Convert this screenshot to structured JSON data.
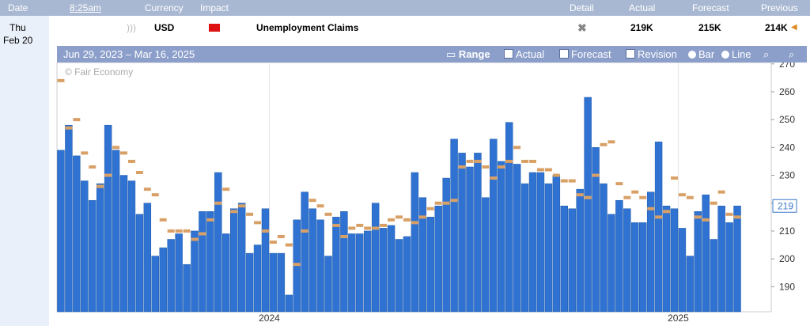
{
  "header": {
    "date": "Date",
    "time": "8:25am",
    "currency": "Currency",
    "impact": "Impact",
    "detail": "Detail",
    "actual": "Actual",
    "forecast": "Forecast",
    "previous": "Previous"
  },
  "event": {
    "day": "Thu",
    "date": "Feb 20",
    "currency": "USD",
    "title": "Unemployment Claims",
    "actual": "219K",
    "forecast": "215K",
    "previous": "214K"
  },
  "toolbar": {
    "range_text": "Jun 29, 2023 – Mar 16, 2025",
    "range": "Range",
    "actual": "Actual",
    "forecast": "Forecast",
    "revision": "Revision",
    "bar": "Bar",
    "line": "Line"
  },
  "chart": {
    "type": "bar",
    "watermark": "© Fair Economy",
    "latest_label": "219",
    "categories": [
      null,
      null,
      null,
      null,
      null,
      null,
      null,
      null,
      null,
      null,
      null,
      null,
      null,
      null,
      null,
      null,
      null,
      null,
      null,
      null,
      null,
      null,
      null,
      null,
      null,
      null,
      null,
      "2024",
      null,
      null,
      null,
      null,
      null,
      null,
      null,
      null,
      null,
      null,
      null,
      null,
      null,
      null,
      null,
      null,
      null,
      null,
      null,
      null,
      null,
      null,
      null,
      null,
      null,
      null,
      null,
      null,
      null,
      null,
      null,
      null,
      null,
      null,
      null,
      null,
      null,
      null,
      null,
      null,
      null,
      null,
      null,
      null,
      null,
      null,
      null,
      null,
      null,
      null,
      null,
      "2025",
      null,
      null,
      null,
      null,
      null,
      null,
      null
    ],
    "series": [
      {
        "name": "Actual",
        "color": "#2f72d2",
        "values": [
          239,
          248,
          237,
          228,
          221,
          227,
          248,
          239,
          230,
          228,
          216,
          220,
          201,
          204,
          207,
          209,
          198,
          210,
          217,
          217,
          231,
          209,
          218,
          220,
          202,
          205,
          218,
          202,
          202,
          187,
          214,
          224,
          218,
          214,
          201,
          215,
          217,
          209,
          209,
          210,
          220,
          211,
          212,
          207,
          208,
          231,
          222,
          215,
          219,
          229,
          243,
          238,
          233,
          238,
          222,
          243,
          235,
          249,
          234,
          227,
          231,
          231,
          227,
          230,
          219,
          218,
          225,
          258,
          240,
          227,
          216,
          221,
          218,
          213,
          213,
          224,
          242,
          219,
          218,
          211,
          201,
          217,
          223,
          207,
          219,
          213,
          219
        ]
      },
      {
        "name": "Forecast",
        "color": "#d9a066",
        "values": [
          264,
          247,
          250,
          238,
          233,
          226,
          230,
          240,
          238,
          235,
          231,
          225,
          223,
          214,
          210,
          210,
          210,
          207,
          209,
          214,
          220,
          225,
          217,
          219,
          216,
          213,
          210,
          206,
          208,
          205,
          198,
          210,
          221,
          219,
          216,
          212,
          208,
          211,
          212,
          211,
          211,
          212,
          214,
          215,
          214,
          213,
          215,
          218,
          220,
          220,
          221,
          233,
          235,
          235,
          233,
          229,
          233,
          235,
          240,
          235,
          235,
          232,
          232,
          230,
          228,
          228,
          223,
          222,
          230,
          241,
          242,
          227,
          222,
          224,
          222,
          218,
          215,
          217,
          229,
          223,
          222,
          215,
          214,
          220,
          224,
          216,
          215
        ]
      }
    ],
    "ylim": [
      181,
      270.5
    ],
    "yticks": [
      190,
      200,
      210,
      220,
      230,
      240,
      250,
      260,
      270
    ]
  }
}
